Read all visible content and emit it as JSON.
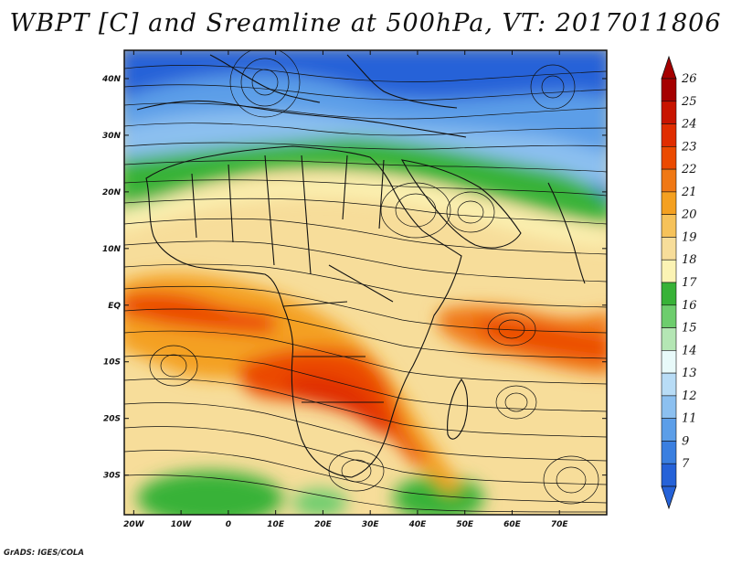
{
  "title": "WBPT [C] and Sreamline at 500hPa, VT: 2017011806",
  "credit": "GrADS: IGES/COLA",
  "map": {
    "lon_range": [
      -22,
      80
    ],
    "lat_range": [
      -37,
      45
    ],
    "lat_ticks": [
      {
        "value": 40,
        "label": "40N"
      },
      {
        "value": 30,
        "label": "30N"
      },
      {
        "value": 20,
        "label": "20N"
      },
      {
        "value": 10,
        "label": "10N"
      },
      {
        "value": 0,
        "label": "EQ"
      },
      {
        "value": -10,
        "label": "10S"
      },
      {
        "value": -20,
        "label": "20S"
      },
      {
        "value": -30,
        "label": "30S"
      }
    ],
    "lon_ticks": [
      {
        "value": -20,
        "label": "20W"
      },
      {
        "value": -10,
        "label": "10W"
      },
      {
        "value": 0,
        "label": "0"
      },
      {
        "value": 10,
        "label": "10E"
      },
      {
        "value": 20,
        "label": "20E"
      },
      {
        "value": 30,
        "label": "30E"
      },
      {
        "value": 40,
        "label": "40E"
      },
      {
        "value": 50,
        "label": "50E"
      },
      {
        "value": 60,
        "label": "60E"
      },
      {
        "value": 70,
        "label": "70E"
      }
    ]
  },
  "colorbar": {
    "levels": [
      {
        "label": "26",
        "color": "#a50000"
      },
      {
        "label": "25",
        "color": "#c81400"
      },
      {
        "label": "24",
        "color": "#e02d00"
      },
      {
        "label": "23",
        "color": "#eb4a00"
      },
      {
        "label": "22",
        "color": "#f07814"
      },
      {
        "label": "21",
        "color": "#f4a020"
      },
      {
        "label": "20",
        "color": "#f6c25a"
      },
      {
        "label": "19",
        "color": "#f7dd9a"
      },
      {
        "label": "18",
        "color": "#fbf3b4"
      },
      {
        "label": "17",
        "color": "#37b237"
      },
      {
        "label": "16",
        "color": "#6dcd6d"
      },
      {
        "label": "15",
        "color": "#b4e6b4"
      },
      {
        "label": "14",
        "color": "#e8fafa"
      },
      {
        "label": "13",
        "color": "#b8dcf6"
      },
      {
        "label": "12",
        "color": "#8cc0f0"
      },
      {
        "label": "11",
        "color": "#5c9ee8"
      },
      {
        "label": "9",
        "color": "#3a7fe0"
      },
      {
        "label": "7",
        "color": "#2562d8"
      }
    ],
    "top_color": "#a50000",
    "bottom_color": "#2562d8"
  }
}
